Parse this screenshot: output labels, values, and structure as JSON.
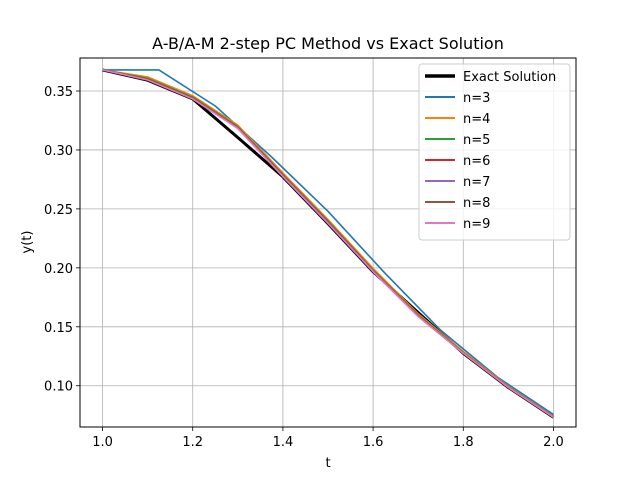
{
  "chart_data": {
    "type": "line",
    "title": "A-B/A-M 2-step PC Method vs Exact Solution",
    "xlabel": "t",
    "ylabel": "y(t)",
    "xlim": [
      0.95,
      2.05
    ],
    "ylim": [
      0.065,
      0.378
    ],
    "xticks": [
      "1.0",
      "1.2",
      "1.4",
      "1.6",
      "1.8",
      "2.0"
    ],
    "yticks": [
      "0.10",
      "0.15",
      "0.20",
      "0.25",
      "0.30",
      "0.35"
    ],
    "grid": true,
    "legend_position": "top-right",
    "series": [
      {
        "name": "Exact Solution",
        "color": "#000000",
        "x": [
          1.0,
          1.1,
          1.2,
          1.3,
          1.4,
          1.5,
          1.6,
          1.7,
          1.8,
          1.9,
          2.0
        ],
        "y": [
          0.3679,
          0.3592,
          0.3433,
          0.3106,
          0.2772,
          0.2375,
          0.1967,
          0.162,
          0.1275,
          0.0985,
          0.0733
        ]
      },
      {
        "name": "n=3",
        "color": "#1f77b4",
        "x": [
          1.0,
          1.125,
          1.25,
          1.375,
          1.5,
          1.625,
          1.75,
          1.875,
          2.0
        ],
        "y": [
          0.3679,
          0.3679,
          0.3373,
          0.294,
          0.248,
          0.196,
          0.147,
          0.1075,
          0.0755
        ]
      },
      {
        "name": "n=4",
        "color": "#ff7f0e",
        "x": [
          1.0,
          1.1,
          1.2,
          1.3,
          1.4,
          1.5,
          1.6,
          1.7,
          1.8,
          1.9,
          2.0
        ],
        "y": [
          0.3679,
          0.362,
          0.346,
          0.321,
          0.2805,
          0.241,
          0.1995,
          0.161,
          0.129,
          0.0995,
          0.074
        ]
      },
      {
        "name": "n=5",
        "color": "#2ca02c",
        "x": [
          1.0,
          1.1,
          1.2,
          1.3,
          1.4,
          1.5,
          1.6,
          1.7,
          1.8,
          1.9,
          2.0
        ],
        "y": [
          0.3679,
          0.3608,
          0.3448,
          0.3198,
          0.2792,
          0.2398,
          0.1982,
          0.16,
          0.1282,
          0.099,
          0.0736
        ]
      },
      {
        "name": "n=6",
        "color": "#d62728",
        "x": [
          1.0,
          1.1,
          1.2,
          1.3,
          1.4,
          1.5,
          1.6,
          1.7,
          1.8,
          1.9,
          2.0
        ],
        "y": [
          0.3679,
          0.36,
          0.344,
          0.319,
          0.2785,
          0.239,
          0.1975,
          0.1594,
          0.1278,
          0.0987,
          0.0734
        ]
      },
      {
        "name": "n=7",
        "color": "#9467bd",
        "x": [
          1.0,
          1.1,
          1.2,
          1.3,
          1.4,
          1.5,
          1.6,
          1.7,
          1.8,
          1.9,
          2.0
        ],
        "y": [
          0.3679,
          0.3596,
          0.3436,
          0.3186,
          0.278,
          0.2384,
          0.1971,
          0.159,
          0.1276,
          0.0986,
          0.0733
        ]
      },
      {
        "name": "n=8",
        "color": "#8c564b",
        "x": [
          1.0,
          1.1,
          1.2,
          1.3,
          1.4,
          1.5,
          1.6,
          1.7,
          1.8,
          1.9,
          2.0
        ],
        "y": [
          0.3679,
          0.3594,
          0.3434,
          0.3184,
          0.2776,
          0.238,
          0.1969,
          0.1588,
          0.1275,
          0.0985,
          0.0733
        ]
      },
      {
        "name": "n=9",
        "color": "#e377c2",
        "x": [
          1.0,
          1.1,
          1.2,
          1.3,
          1.4,
          1.5,
          1.6,
          1.7,
          1.8,
          1.9,
          2.0
        ],
        "y": [
          0.3679,
          0.3593,
          0.3433,
          0.3183,
          0.2774,
          0.2378,
          0.1968,
          0.1587,
          0.1275,
          0.0985,
          0.0733
        ]
      }
    ]
  }
}
